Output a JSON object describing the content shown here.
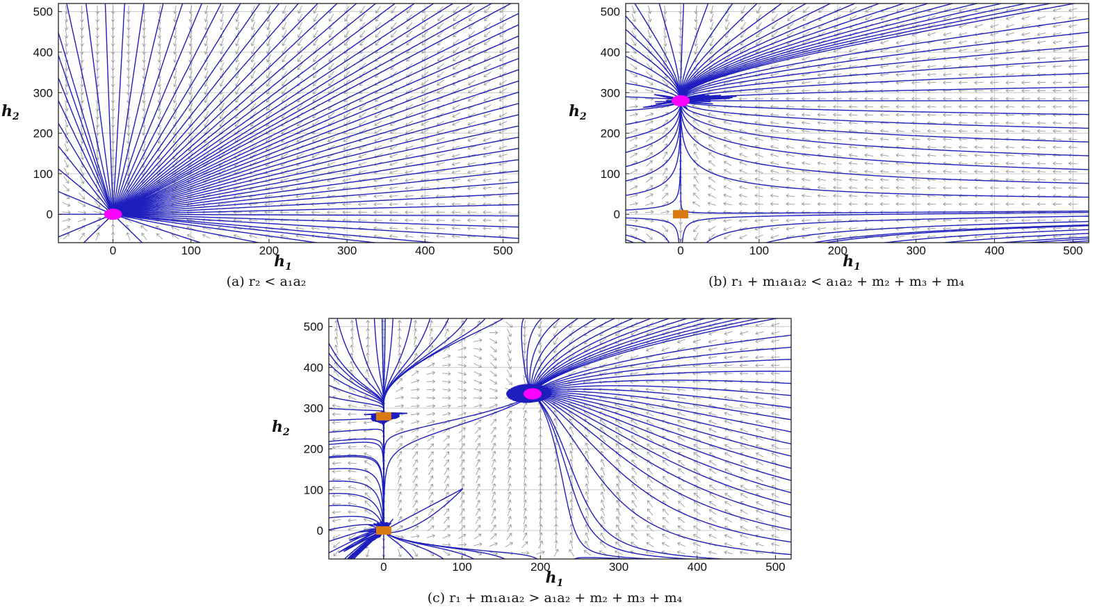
{
  "chart_data": [
    {
      "type": "phase_portrait",
      "panel": "a",
      "caption": "(a) r₂ < a₁a₂",
      "xlabel": "h",
      "xlabel_sub": "1",
      "ylabel": "h",
      "ylabel_sub": "2",
      "xlim": [
        -70,
        520
      ],
      "ylim": [
        -70,
        520
      ],
      "xticks": [
        "0",
        "100",
        "200",
        "300",
        "400",
        "500"
      ],
      "yticks": [
        "0",
        "100",
        "200",
        "300",
        "400",
        "500"
      ],
      "grid": true,
      "trajectory_color": "#1e1ebe",
      "arrow_color": "#9a9a9a",
      "equilibria": [
        {
          "h1": 0,
          "h2": 0,
          "kind": "stable",
          "color": "#ff00ff"
        }
      ]
    },
    {
      "type": "phase_portrait",
      "panel": "b",
      "caption": "(b) r₁ + m₁a₁a₂ < a₁a₂ + m₂ + m₃ + m₄",
      "xlabel": "h",
      "xlabel_sub": "1",
      "ylabel": "h",
      "ylabel_sub": "2",
      "xlim": [
        -70,
        520
      ],
      "ylim": [
        -70,
        520
      ],
      "xticks": [
        "0",
        "100",
        "200",
        "300",
        "400",
        "500"
      ],
      "yticks": [
        "0",
        "100",
        "200",
        "300",
        "400",
        "500"
      ],
      "grid": true,
      "trajectory_color": "#1e1ebe",
      "arrow_color": "#9a9a9a",
      "equilibria": [
        {
          "h1": 0,
          "h2": 280,
          "kind": "stable",
          "color": "#ff00ff"
        },
        {
          "h1": 0,
          "h2": 0,
          "kind": "saddle",
          "color": "#d87a10"
        }
      ]
    },
    {
      "type": "phase_portrait",
      "panel": "c",
      "caption": "(c) r₁ + m₁a₁a₂ > a₁a₂ + m₂ + m₃ + m₄",
      "xlabel": "h",
      "xlabel_sub": "1",
      "ylabel": "h",
      "ylabel_sub": "2",
      "xlim": [
        -70,
        520
      ],
      "ylim": [
        -70,
        520
      ],
      "xticks": [
        "0",
        "100",
        "200",
        "300",
        "400",
        "500"
      ],
      "yticks": [
        "0",
        "100",
        "200",
        "300",
        "400",
        "500"
      ],
      "grid": true,
      "trajectory_color": "#1e1ebe",
      "arrow_color": "#9a9a9a",
      "equilibria": [
        {
          "h1": 190,
          "h2": 335,
          "kind": "stable",
          "color": "#ff00ff"
        },
        {
          "h1": 0,
          "h2": 280,
          "kind": "saddle",
          "color": "#d87a10"
        },
        {
          "h1": 0,
          "h2": 0,
          "kind": "saddle",
          "color": "#d87a10"
        }
      ]
    }
  ]
}
